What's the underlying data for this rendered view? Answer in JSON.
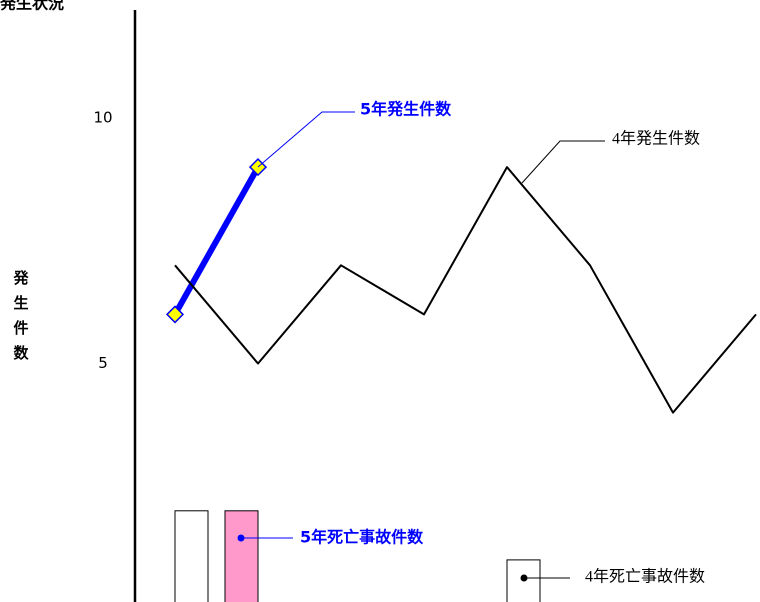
{
  "chart_data": {
    "type": "combo",
    "title": "発生状況",
    "y_label": "発生件数",
    "categories": [
      null,
      null,
      null,
      null,
      null,
      null,
      null,
      null
    ],
    "ylim": [
      0,
      12.2
    ],
    "yticks": [
      5,
      10
    ],
    "series": [
      {
        "name": "5年発生件数",
        "type": "line",
        "color": "#0000ff",
        "values": [
          6,
          9,
          null,
          null,
          null,
          null,
          null,
          null
        ]
      },
      {
        "name": "4年発生件数",
        "type": "line",
        "color": "#000000",
        "values": [
          7,
          5,
          7,
          6,
          9,
          7,
          4,
          6
        ]
      },
      {
        "name": "5年死亡事故件数",
        "type": "bar",
        "color": "#ff99cc",
        "values": [
          2,
          0,
          null,
          null,
          null,
          null,
          null,
          null
        ]
      },
      {
        "name": "4年死亡事故件数",
        "type": "bar",
        "color": "#ffffff",
        "values": [
          2,
          0,
          0,
          0,
          1,
          0,
          0,
          0
        ]
      }
    ]
  }
}
